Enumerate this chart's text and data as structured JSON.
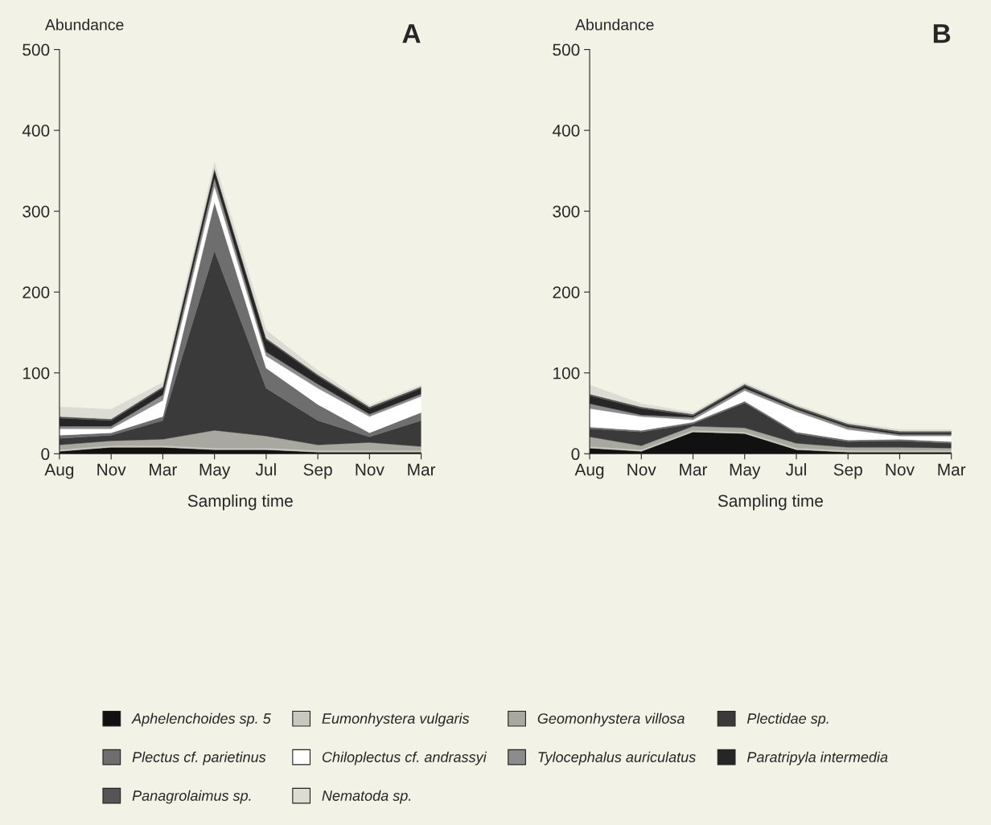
{
  "chart_data": [
    {
      "type": "area",
      "title": "A",
      "ylabel": "Abundance",
      "xlabel": "Sampling time",
      "stacked": true,
      "legend": "bottom",
      "grid": false,
      "categories": [
        "Aug",
        "Nov",
        "Mar",
        "May",
        "Jul",
        "Sep",
        "Nov",
        "Mar"
      ],
      "ylim": [
        0,
        500
      ],
      "yticks": [
        0,
        100,
        200,
        300,
        400,
        500
      ],
      "series": [
        {
          "name": "Aphelenchoides sp. 5",
          "color": "#111111",
          "values": [
            3,
            8,
            8,
            5,
            5,
            2,
            2,
            2
          ]
        },
        {
          "name": "Eumonhystera vulgaris",
          "color": "#c8c8c0",
          "values": [
            2,
            2,
            2,
            2,
            2,
            2,
            2,
            2
          ]
        },
        {
          "name": "Geomonhystera villosa",
          "color": "#a8a8a0",
          "values": [
            6,
            6,
            8,
            22,
            15,
            7,
            10,
            5
          ]
        },
        {
          "name": "Plectidae sp.",
          "color": "#3a3a3a",
          "values": [
            8,
            7,
            23,
            222,
            59,
            30,
            7,
            32
          ]
        },
        {
          "name": "Plectus cf. parietinus",
          "color": "#6e6e6e",
          "values": [
            4,
            3,
            5,
            60,
            25,
            20,
            5,
            10
          ]
        },
        {
          "name": "Chiloplectus cf. andrassyi",
          "color": "#ffffff",
          "values": [
            8,
            5,
            20,
            20,
            15,
            20,
            20,
            20
          ]
        },
        {
          "name": "Tylocephalus auriculatus",
          "color": "#8c8c8c",
          "values": [
            3,
            3,
            7,
            10,
            5,
            5,
            3,
            3
          ]
        },
        {
          "name": "Paratripyla intermedia",
          "color": "#262626",
          "values": [
            10,
            7,
            8,
            10,
            15,
            10,
            7,
            7
          ]
        },
        {
          "name": "Panagrolaimus sp.",
          "color": "#555555",
          "values": [
            2,
            2,
            2,
            2,
            2,
            2,
            2,
            2
          ]
        },
        {
          "name": "Nematoda sp.",
          "color": "#dcdcd4",
          "values": [
            12,
            12,
            5,
            8,
            10,
            5,
            2,
            2
          ]
        }
      ]
    },
    {
      "type": "area",
      "title": "B",
      "ylabel": "Abundance",
      "xlabel": "Sampling time",
      "stacked": true,
      "grid": false,
      "categories": [
        "Aug",
        "Nov",
        "Mar",
        "May",
        "Jul",
        "Sep",
        "Nov",
        "Mar"
      ],
      "ylim": [
        0,
        500
      ],
      "yticks": [
        0,
        100,
        200,
        300,
        400,
        500
      ],
      "series": [
        {
          "color": "#111111",
          "values": [
            7,
            3,
            27,
            25,
            5,
            2,
            2,
            2
          ]
        },
        {
          "color": "#c8c8c0",
          "values": [
            2,
            2,
            2,
            2,
            2,
            2,
            2,
            2
          ]
        },
        {
          "color": "#a8a8a0",
          "values": [
            12,
            5,
            5,
            5,
            6,
            4,
            4,
            3
          ]
        },
        {
          "color": "#3a3a3a",
          "values": [
            10,
            17,
            3,
            31,
            12,
            7,
            8,
            6
          ]
        },
        {
          "color": "#6e6e6e",
          "values": [
            2,
            2,
            2,
            2,
            2,
            2,
            2,
            2
          ]
        },
        {
          "color": "#ffffff",
          "values": [
            23,
            17,
            3,
            13,
            25,
            13,
            4,
            7
          ]
        },
        {
          "color": "#8c8c8c",
          "values": [
            6,
            2,
            3,
            3,
            3,
            3,
            2,
            2
          ]
        },
        {
          "color": "#262626",
          "values": [
            10,
            8,
            2,
            3,
            2,
            2,
            2,
            2
          ]
        },
        {
          "color": "#555555",
          "values": [
            2,
            2,
            2,
            2,
            2,
            2,
            2,
            2
          ]
        },
        {
          "color": "#dcdcd4",
          "values": [
            11,
            4,
            2,
            2,
            2,
            2,
            2,
            2
          ]
        }
      ]
    }
  ]
}
